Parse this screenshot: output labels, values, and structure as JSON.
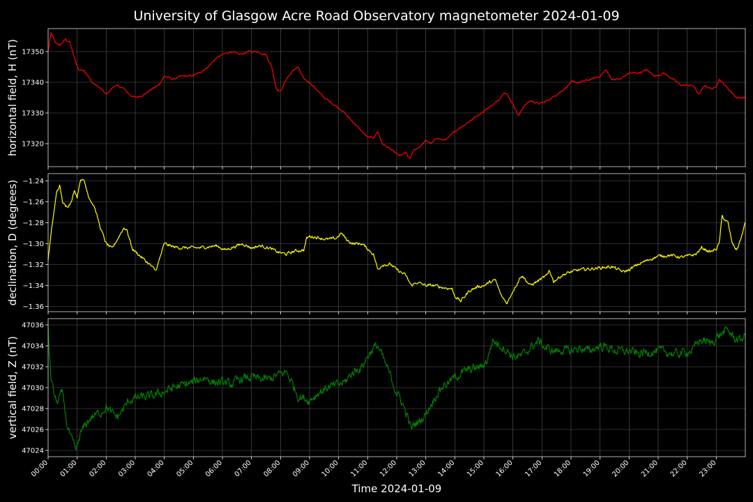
{
  "chart_data": {
    "type": "line",
    "title": "University of Glasgow Acre Road Observatory magnetometer 2024-01-09",
    "xlabel": "Time 2024-01-09",
    "x_ticks": [
      "00:00",
      "01:00",
      "02:00",
      "03:00",
      "04:00",
      "05:00",
      "06:00",
      "07:00",
      "08:00",
      "09:00",
      "10:00",
      "11:00",
      "12:00",
      "13:00",
      "14:00",
      "15:00",
      "16:00",
      "17:00",
      "18:00",
      "19:00",
      "20:00",
      "21:00",
      "22:00",
      "23:00"
    ],
    "xlim": [
      0,
      24
    ],
    "grid": true,
    "panels": [
      {
        "ylabel": "horizontal field, H (nT)",
        "color": "#ff0000",
        "ylim": [
          17312.5,
          17357.5
        ],
        "yticks": [
          17320,
          17330,
          17340,
          17350
        ],
        "ytick_labels": [
          "17320",
          "17330",
          "17340",
          "17350"
        ],
        "noise": 0.25,
        "x": [
          0,
          0.1,
          0.25,
          0.4,
          0.6,
          0.75,
          0.9,
          1.05,
          1.25,
          1.5,
          1.8,
          2.0,
          2.3,
          2.6,
          2.8,
          3.0,
          3.3,
          3.6,
          3.8,
          4.0,
          4.3,
          4.6,
          4.9,
          5.2,
          5.5,
          5.8,
          6.0,
          6.3,
          6.6,
          6.9,
          7.2,
          7.5,
          7.7,
          7.85,
          8.0,
          8.2,
          8.45,
          8.6,
          8.8,
          9.0,
          9.2,
          9.5,
          9.8,
          10.1,
          10.4,
          10.7,
          11.0,
          11.2,
          11.35,
          11.5,
          11.8,
          12.1,
          12.3,
          12.45,
          12.6,
          12.8,
          13.0,
          13.2,
          13.4,
          13.6,
          13.8,
          14.0,
          14.3,
          14.6,
          14.9,
          15.2,
          15.5,
          15.7,
          15.8,
          16.0,
          16.2,
          16.35,
          16.6,
          16.9,
          17.2,
          17.5,
          17.8,
          18.0,
          18.3,
          18.7,
          19.0,
          19.2,
          19.4,
          19.7,
          20.0,
          20.3,
          20.6,
          20.9,
          21.2,
          21.5,
          21.8,
          22.0,
          22.2,
          22.4,
          22.6,
          22.8,
          22.95,
          23.1,
          23.3,
          23.5,
          23.7,
          23.9,
          24
        ],
        "y": [
          17350,
          17356,
          17353,
          17352,
          17354,
          17353,
          17348,
          17344,
          17344,
          17340,
          17338,
          17336,
          17339,
          17338,
          17336,
          17335,
          17336,
          17338,
          17339,
          17342,
          17341,
          17342,
          17342,
          17343,
          17345,
          17348,
          17349,
          17350,
          17349,
          17350,
          17350,
          17349,
          17345,
          17338,
          17337,
          17341,
          17344,
          17345,
          17341,
          17340,
          17338,
          17335,
          17333,
          17331,
          17328,
          17325,
          17322,
          17322,
          17324,
          17320,
          17318,
          17316,
          17317,
          17315,
          17318,
          17319,
          17321,
          17320,
          17322,
          17321,
          17322,
          17324,
          17326,
          17328,
          17330,
          17332,
          17334,
          17337,
          17336,
          17333,
          17329,
          17332,
          17334,
          17333,
          17334,
          17336,
          17338,
          17340,
          17340,
          17341,
          17342,
          17344,
          17341,
          17341,
          17343,
          17343,
          17344,
          17342,
          17343,
          17341,
          17339,
          17339,
          17339,
          17336,
          17339,
          17338,
          17338,
          17341,
          17339,
          17337,
          17335,
          17335,
          17335
        ]
      },
      {
        "ylabel": "declination, D (degrees)",
        "color": "#ffff00",
        "ylim": [
          -1.365,
          -1.233
        ],
        "yticks": [
          -1.36,
          -1.34,
          -1.32,
          -1.3,
          -1.28,
          -1.26,
          -1.24
        ],
        "ytick_labels": [
          "−1.36",
          "−1.34",
          "−1.32",
          "−1.30",
          "−1.28",
          "−1.26",
          "−1.24"
        ],
        "noise": 0.0012,
        "x": [
          0,
          0.15,
          0.3,
          0.4,
          0.5,
          0.6,
          0.75,
          0.9,
          1.0,
          1.1,
          1.2,
          1.4,
          1.6,
          1.8,
          2.0,
          2.2,
          2.4,
          2.6,
          2.7,
          2.9,
          3.1,
          3.3,
          3.5,
          3.7,
          3.8,
          4.0,
          4.3,
          4.6,
          4.9,
          5.2,
          5.5,
          5.8,
          6.1,
          6.4,
          6.7,
          7.0,
          7.3,
          7.6,
          7.9,
          8.2,
          8.5,
          8.8,
          8.9,
          9.0,
          9.3,
          9.6,
          9.9,
          10.1,
          10.3,
          10.5,
          10.8,
          11.0,
          11.2,
          11.35,
          11.5,
          11.8,
          12.0,
          12.3,
          12.5,
          12.7,
          13.0,
          13.3,
          13.6,
          13.9,
          14.0,
          14.2,
          14.5,
          14.8,
          15.0,
          15.2,
          15.4,
          15.6,
          15.8,
          16.0,
          16.3,
          16.6,
          16.9,
          17.2,
          17.25,
          17.4,
          17.7,
          18.0,
          18.3,
          18.7,
          19.0,
          19.4,
          19.8,
          20.0,
          20.3,
          20.7,
          21.0,
          21.4,
          21.8,
          22.0,
          22.3,
          22.5,
          22.8,
          23.0,
          23.1,
          23.2,
          23.4,
          23.55,
          23.7,
          23.85,
          24
        ],
        "y": [
          -1.315,
          -1.28,
          -1.25,
          -1.245,
          -1.26,
          -1.265,
          -1.262,
          -1.25,
          -1.255,
          -1.24,
          -1.237,
          -1.255,
          -1.265,
          -1.285,
          -1.3,
          -1.305,
          -1.295,
          -1.285,
          -1.286,
          -1.305,
          -1.31,
          -1.315,
          -1.32,
          -1.326,
          -1.318,
          -1.3,
          -1.303,
          -1.304,
          -1.304,
          -1.304,
          -1.303,
          -1.302,
          -1.306,
          -1.303,
          -1.3,
          -1.304,
          -1.302,
          -1.304,
          -1.308,
          -1.31,
          -1.307,
          -1.306,
          -1.295,
          -1.293,
          -1.294,
          -1.296,
          -1.295,
          -1.29,
          -1.297,
          -1.3,
          -1.3,
          -1.305,
          -1.31,
          -1.325,
          -1.32,
          -1.32,
          -1.325,
          -1.33,
          -1.34,
          -1.337,
          -1.34,
          -1.34,
          -1.342,
          -1.343,
          -1.35,
          -1.355,
          -1.345,
          -1.341,
          -1.34,
          -1.337,
          -1.335,
          -1.35,
          -1.357,
          -1.345,
          -1.33,
          -1.34,
          -1.335,
          -1.33,
          -1.325,
          -1.336,
          -1.33,
          -1.327,
          -1.325,
          -1.324,
          -1.323,
          -1.322,
          -1.327,
          -1.325,
          -1.32,
          -1.315,
          -1.312,
          -1.311,
          -1.313,
          -1.312,
          -1.31,
          -1.304,
          -1.308,
          -1.305,
          -1.3,
          -1.274,
          -1.28,
          -1.3,
          -1.306,
          -1.295,
          -1.28
        ]
      },
      {
        "ylabel": "vertical field, Z (nT)",
        "color": "#008000",
        "ylim": [
          47023.4,
          47036.6
        ],
        "yticks": [
          47024,
          47026,
          47028,
          47030,
          47032,
          47034,
          47036
        ],
        "ytick_labels": [
          "47024",
          "47026",
          "47028",
          "47030",
          "47032",
          "47034",
          "47036"
        ],
        "noise": 0.35,
        "x": [
          0,
          0.05,
          0.1,
          0.2,
          0.3,
          0.4,
          0.5,
          0.55,
          0.65,
          0.8,
          0.95,
          1.0,
          1.1,
          1.3,
          1.5,
          1.8,
          2.0,
          2.2,
          2.4,
          2.6,
          2.8,
          3.0,
          3.3,
          3.6,
          4.0,
          4.3,
          4.6,
          5.0,
          5.4,
          5.7,
          6.0,
          6.3,
          6.6,
          7.0,
          7.3,
          7.6,
          7.9,
          8.2,
          8.4,
          8.6,
          8.8,
          9.0,
          9.3,
          9.6,
          9.9,
          10.2,
          10.5,
          10.8,
          11.0,
          11.2,
          11.35,
          11.5,
          11.8,
          12.0,
          12.2,
          12.4,
          12.5,
          12.6,
          12.8,
          13.0,
          13.2,
          13.4,
          13.6,
          13.8,
          14.0,
          14.3,
          14.6,
          14.9,
          15.1,
          15.3,
          15.6,
          15.8,
          16.0,
          16.3,
          16.6,
          16.9,
          17.1,
          17.4,
          17.7,
          18.0,
          18.3,
          18.6,
          19.0,
          19.3,
          19.6,
          20.0,
          20.3,
          20.6,
          21.0,
          21.3,
          21.6,
          21.9,
          22.2,
          22.4,
          22.6,
          22.8,
          23.0,
          23.2,
          23.4,
          23.6,
          23.8,
          24
        ],
        "y": [
          47036,
          47033,
          47031,
          47029.5,
          47028.5,
          47029.2,
          47029.4,
          47028.5,
          47026.5,
          47025,
          47024,
          47024.2,
          47025.5,
          47026.5,
          47027.2,
          47027.6,
          47028.2,
          47027.5,
          47027.2,
          47028,
          47028.8,
          47029,
          47029.1,
          47029.2,
          47029.6,
          47030,
          47030.2,
          47030.5,
          47031,
          47030.5,
          47030.5,
          47030.3,
          47030.8,
          47031,
          47030.8,
          47030.8,
          47031.2,
          47031.5,
          47030.5,
          47029.2,
          47029,
          47028.8,
          47029.5,
          47030,
          47030.2,
          47030.5,
          47031.5,
          47032,
          47033,
          47033.8,
          47034,
          47033,
          47031,
          47029.5,
          47028.5,
          47027,
          47026,
          47026.5,
          47026.8,
          47027.5,
          47028.5,
          47029.5,
          47030.2,
          47030.5,
          47031,
          47031.5,
          47031.8,
          47032,
          47032.5,
          47034.5,
          47034,
          47033.5,
          47033,
          47033,
          47033.8,
          47034.5,
          47033.8,
          47033.5,
          47033.6,
          47033.5,
          47033.8,
          47033.5,
          47034,
          47033.8,
          47033.5,
          47033.5,
          47033.2,
          47033.4,
          47033.5,
          47033.4,
          47033.2,
          47033.4,
          47033.6,
          47034.5,
          47034.5,
          47034.2,
          47034.8,
          47035.2,
          47035.5,
          47034.8,
          47034.5,
          47035
        ]
      }
    ]
  }
}
